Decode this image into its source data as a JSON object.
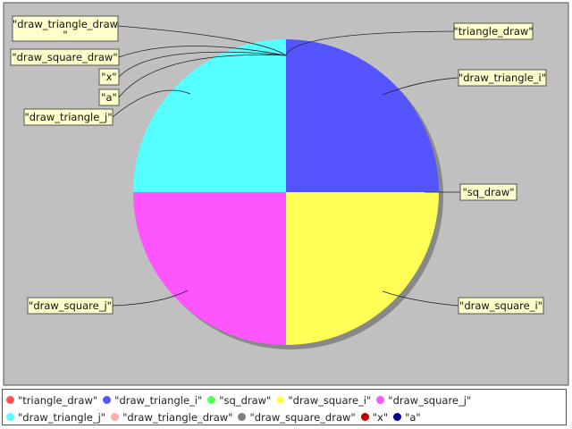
{
  "chart_data": {
    "type": "pie",
    "categories": [
      "\"triangle_draw\"",
      "\"draw_triangle_i\"",
      "\"sq_draw\"",
      "\"draw_square_i\"",
      "\"draw_square_j\"",
      "\"draw_triangle_j\"",
      "\"draw_triangle_draw\"",
      "\"draw_square_draw\"",
      "\"x\"",
      "\"a\""
    ],
    "values": [
      0.0,
      25.0,
      0.0,
      25.0,
      25.0,
      25.0,
      0.0,
      0.0,
      0.0,
      0.0
    ],
    "colors": [
      "#ff5555",
      "#5555ff",
      "#55ff55",
      "#ffff55",
      "#ff55ff",
      "#55ffff",
      "#ffafaf",
      "#808080",
      "#c00000",
      "#000090"
    ],
    "legend_position": "bottom",
    "background": "#c0c0c0",
    "label_background": "#ffffcc",
    "labels": [
      {
        "text": "\"draw_triangle_draw\""
      },
      {
        "text": "\"draw_square_draw\""
      },
      {
        "text": "\"x\""
      },
      {
        "text": "\"a\""
      },
      {
        "text": "\"draw_triangle_j\""
      },
      {
        "text": "\"triangle_draw\""
      },
      {
        "text": "\"draw_triangle_i\""
      },
      {
        "text": "\"sq_draw\""
      },
      {
        "text": "\"draw_square_i\""
      },
      {
        "text": "\"draw_square_j\""
      }
    ]
  }
}
